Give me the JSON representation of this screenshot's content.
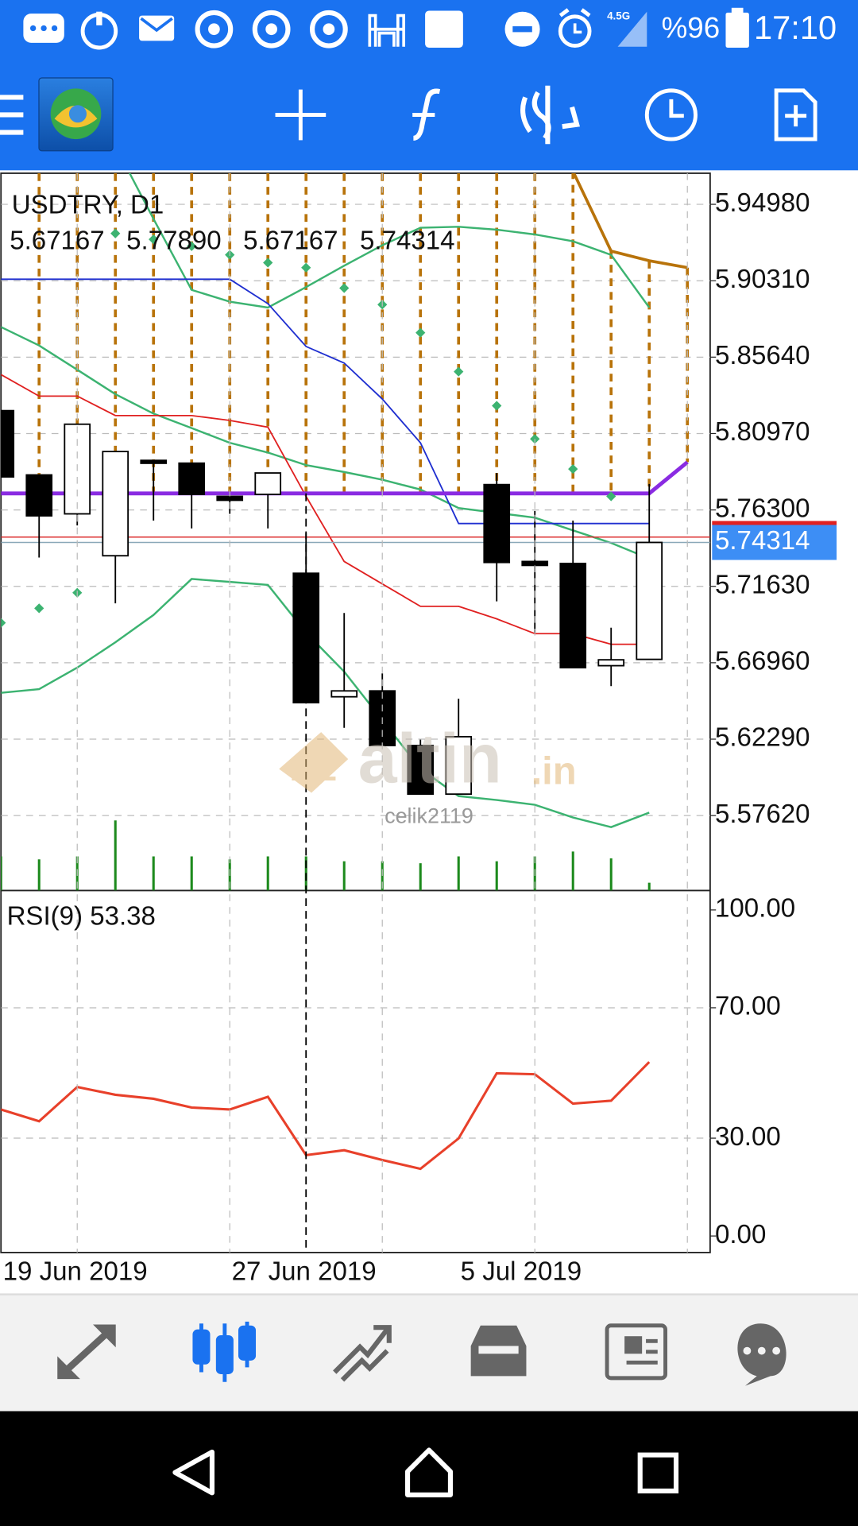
{
  "status_bar": {
    "network": "4.5G",
    "battery": "%96",
    "time": "17:10"
  },
  "chart_data": [
    {
      "type": "candlestick",
      "title": "USDTRY, D1",
      "ohlc_labels": [
        "5.67167",
        "5.77890",
        "5.67167",
        "5.74314"
      ],
      "categories": [
        "19 Jun 2019",
        null,
        null,
        null,
        null,
        null,
        "27 Jun 2019",
        null,
        null,
        null,
        null,
        null,
        "5 Jul 2019",
        null,
        null,
        null,
        null,
        null,
        null
      ],
      "open": [
        5.8237,
        5.7844,
        5.7606,
        5.735,
        5.7933,
        5.7916,
        5.7713,
        5.7725,
        5.7243,
        5.6488,
        5.6524,
        5.619,
        5.5893,
        5.7785,
        5.7315,
        5.7303,
        5.6678,
        5.67167,
        null
      ],
      "high": [
        5.8237,
        5.7844,
        5.8154,
        5.7987,
        5.7933,
        5.7916,
        5.7713,
        5.7856,
        5.7487,
        5.7,
        5.6631,
        5.6226,
        5.6476,
        5.7856,
        5.7624,
        5.7565,
        5.691,
        5.7789,
        null
      ],
      "low": [
        5.7832,
        5.7339,
        5.7535,
        5.7059,
        5.7565,
        5.7517,
        5.7606,
        5.7517,
        5.6452,
        5.6298,
        5.619,
        5.5893,
        5.5893,
        5.7071,
        5.688,
        5.6666,
        5.6553,
        5.67167,
        null
      ],
      "close": [
        5.7832,
        5.7594,
        5.8154,
        5.7987,
        5.7927,
        5.7725,
        5.7689,
        5.7856,
        5.6452,
        5.6524,
        5.619,
        5.5893,
        5.6244,
        5.7309,
        5.7291,
        5.6666,
        5.6714,
        5.74314,
        null
      ],
      "up_color": "#ffffff",
      "down_color": "#000000",
      "cloud": {
        "color": "#b8730a",
        "upper": [
          null,
          null,
          null,
          null,
          null,
          null,
          null,
          null,
          null,
          null,
          null,
          null,
          null,
          null,
          null,
          5.97,
          5.9212,
          5.9153,
          5.9111
        ],
        "lower": [
          5.7731,
          5.7731,
          5.7731,
          5.7731,
          5.7731,
          5.7731,
          5.7731,
          5.7731,
          5.7731,
          5.7731,
          5.7731,
          5.7731,
          5.7731,
          5.7731,
          5.7731,
          5.7731,
          5.7731,
          5.7731,
          5.7922
        ]
      },
      "lines": [
        {
          "color": "#3cb371",
          "width": 2,
          "values": [
            null,
            null,
            null,
            5.9855,
            5.9409,
            5.8975,
            5.8903,
            5.8867,
            5.8992,
            5.9123,
            5.9248,
            5.9355,
            5.9361,
            5.9343,
            5.9314,
            5.9272,
            5.9189,
            5.8867,
            null
          ]
        },
        {
          "color": "#3cb371",
          "width": 2,
          "values": [
            5.8748,
            5.8635,
            5.8487,
            5.8338,
            5.8219,
            5.813,
            5.804,
            5.7981,
            5.7904,
            5.7862,
            5.7815,
            5.7755,
            5.7642,
            5.7612,
            5.7583,
            5.7505,
            5.7428,
            5.7333,
            null
          ]
        },
        {
          "color": "#3cb371",
          "width": 2,
          "values": [
            5.6512,
            5.6535,
            5.6666,
            5.6821,
            5.6988,
            5.7208,
            5.719,
            5.7172,
            5.688,
            5.6642,
            5.6345,
            5.6048,
            5.5881,
            5.5857,
            5.5828,
            5.575,
            5.5691,
            5.578,
            null
          ]
        },
        {
          "color": "#e02020",
          "width": 1.5,
          "values": [
            5.8457,
            5.8326,
            5.8326,
            5.8207,
            5.8207,
            5.8207,
            5.8177,
            5.8136,
            5.7713,
            5.7315,
            5.7178,
            5.7041,
            5.7041,
            5.6964,
            5.6874,
            5.6874,
            5.6809,
            5.6809,
            null
          ]
        },
        {
          "color": "#1f2fd0",
          "width": 1.5,
          "values": [
            5.904,
            5.904,
            5.904,
            5.904,
            5.904,
            5.904,
            5.904,
            5.8891,
            5.8629,
            5.8528,
            5.8308,
            5.804,
            5.7547,
            5.7547,
            5.7547,
            5.7547,
            5.7547,
            5.7547,
            null
          ]
        },
        {
          "color": "#8a2be2",
          "width": 4,
          "values": [
            5.7731,
            5.7731,
            5.7731,
            5.7731,
            5.7731,
            5.7731,
            5.7731,
            5.7731,
            5.7731,
            5.7731,
            5.7731,
            5.7731,
            5.7731,
            5.7731,
            5.7731,
            5.7731,
            5.7731,
            5.7731,
            5.7922
          ]
        },
        {
          "color": "#b8730a",
          "width": 3,
          "values": [
            null,
            null,
            null,
            null,
            null,
            null,
            null,
            null,
            null,
            null,
            null,
            null,
            null,
            null,
            null,
            5.97,
            5.9212,
            5.9153,
            5.9111
          ]
        }
      ],
      "sar": {
        "color": "#3cb371",
        "values": [
          5.694,
          5.7029,
          5.7124,
          5.932,
          5.9284,
          5.9242,
          5.9189,
          5.9141,
          5.9111,
          5.8986,
          5.8885,
          5.8713,
          5.8475,
          5.8267,
          5.8064,
          5.788,
          5.7713,
          null,
          null
        ]
      },
      "volume": {
        "color": "#1d8a1d",
        "values": [
          35,
          32,
          35,
          72,
          35,
          35,
          32,
          35,
          35,
          30,
          30,
          28,
          35,
          30,
          35,
          40,
          33,
          8,
          null
        ]
      },
      "ylim": [
        5.5304,
        5.9688
      ],
      "yticks": [
        {
          "value": 5.9498,
          "label": "5.94980"
        },
        {
          "value": 5.9031,
          "label": "5.90310"
        },
        {
          "value": 5.8564,
          "label": "5.85640"
        },
        {
          "value": 5.8097,
          "label": "5.80970"
        },
        {
          "value": 5.763,
          "label": "5.76300"
        },
        {
          "value": 5.7163,
          "label": "5.71630"
        },
        {
          "value": 5.6696,
          "label": "5.66960"
        },
        {
          "value": 5.6229,
          "label": "5.62290"
        },
        {
          "value": 5.5762,
          "label": "5.57620"
        }
      ],
      "grid": true,
      "current_price": {
        "value": 5.74314,
        "label": "5.74314"
      },
      "ask_price": 5.7464,
      "crosshair": 8,
      "watermark": {
        "brand": "altin",
        "domain": ".in",
        "user": "celik2119"
      }
    },
    {
      "type": "line",
      "title": "RSI(9) 53.38",
      "color": "#e8402a",
      "values": [
        38.8,
        35.2,
        45.7,
        43.3,
        42.1,
        39.4,
        38.8,
        42.7,
        24.8,
        26.3,
        23.3,
        20.6,
        29.9,
        49.9,
        49.6,
        40.6,
        41.5,
        53.38,
        null
      ],
      "ylim": [
        0,
        100
      ],
      "yticks": [
        {
          "value": 100,
          "label": "100.00"
        },
        {
          "value": 70,
          "label": "70.00"
        },
        {
          "value": 30,
          "label": "30.00"
        },
        {
          "value": 0,
          "label": "0.00"
        }
      ],
      "grid": true
    }
  ]
}
